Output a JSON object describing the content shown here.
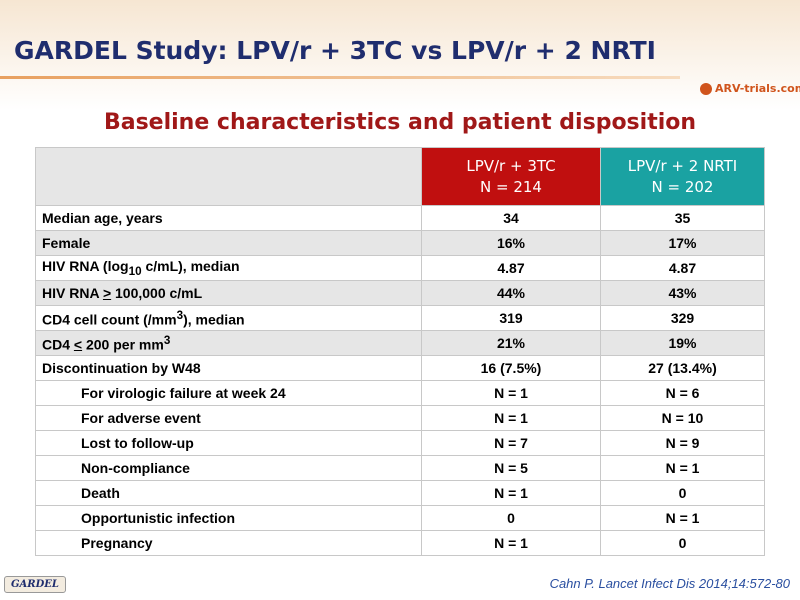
{
  "header": {
    "title": "GARDEL Study: LPV/r + 3TC vs LPV/r + 2 NRTI",
    "logo": "ARV-trials.com"
  },
  "subtitle": "Baseline characteristics and patient disposition",
  "table": {
    "columns": [
      [
        "LPV/r + 3TC",
        "N = 214"
      ],
      [
        "LPV/r + 2 NRTI",
        "N = 202"
      ]
    ],
    "rows": [
      {
        "label": [
          "Median age, years"
        ],
        "values": [
          "34",
          "35"
        ]
      },
      {
        "label": [
          "Female"
        ],
        "values": [
          "16%",
          "17%"
        ]
      },
      {
        "label": [
          "HIV RNA (log",
          "10",
          " c/mL), median"
        ],
        "values": [
          "4.87",
          "4.87"
        ]
      },
      {
        "label": [
          "HIV RNA ",
          ">",
          " 100,000 c/mL"
        ],
        "values": [
          "44%",
          "43%"
        ]
      },
      {
        "label": [
          "CD4 cell count (/mm",
          "3",
          "), median"
        ],
        "values": [
          "319",
          "329"
        ]
      },
      {
        "label": [
          "CD4 ",
          "<",
          " 200 per mm",
          "3"
        ],
        "values": [
          "21%",
          "19%"
        ]
      },
      {
        "label": [
          "Discontinuation by W48"
        ],
        "values": [
          "16 (7.5%)",
          "27 (13.4%)"
        ]
      },
      {
        "label": [
          "For virologic failure at week 24"
        ],
        "values": [
          "N = 1",
          "N = 6"
        ]
      },
      {
        "label": [
          "For adverse event"
        ],
        "values": [
          "N = 1",
          "N = 10"
        ]
      },
      {
        "label": [
          "Lost to follow-up"
        ],
        "values": [
          "N = 7",
          "N = 9"
        ]
      },
      {
        "label": [
          "Non-compliance"
        ],
        "values": [
          "N = 5",
          "N = 1"
        ]
      },
      {
        "label": [
          "Death"
        ],
        "values": [
          "N = 1",
          "0"
        ]
      },
      {
        "label": [
          "Opportunistic infection"
        ],
        "values": [
          "0",
          "N = 1"
        ]
      },
      {
        "label": [
          "Pregnancy"
        ],
        "values": [
          "N = 1",
          "0"
        ]
      }
    ]
  },
  "footer": {
    "badge": "GARDEL",
    "citation": "Cahn P. Lancet Infect Dis 2014;14:572-80"
  }
}
